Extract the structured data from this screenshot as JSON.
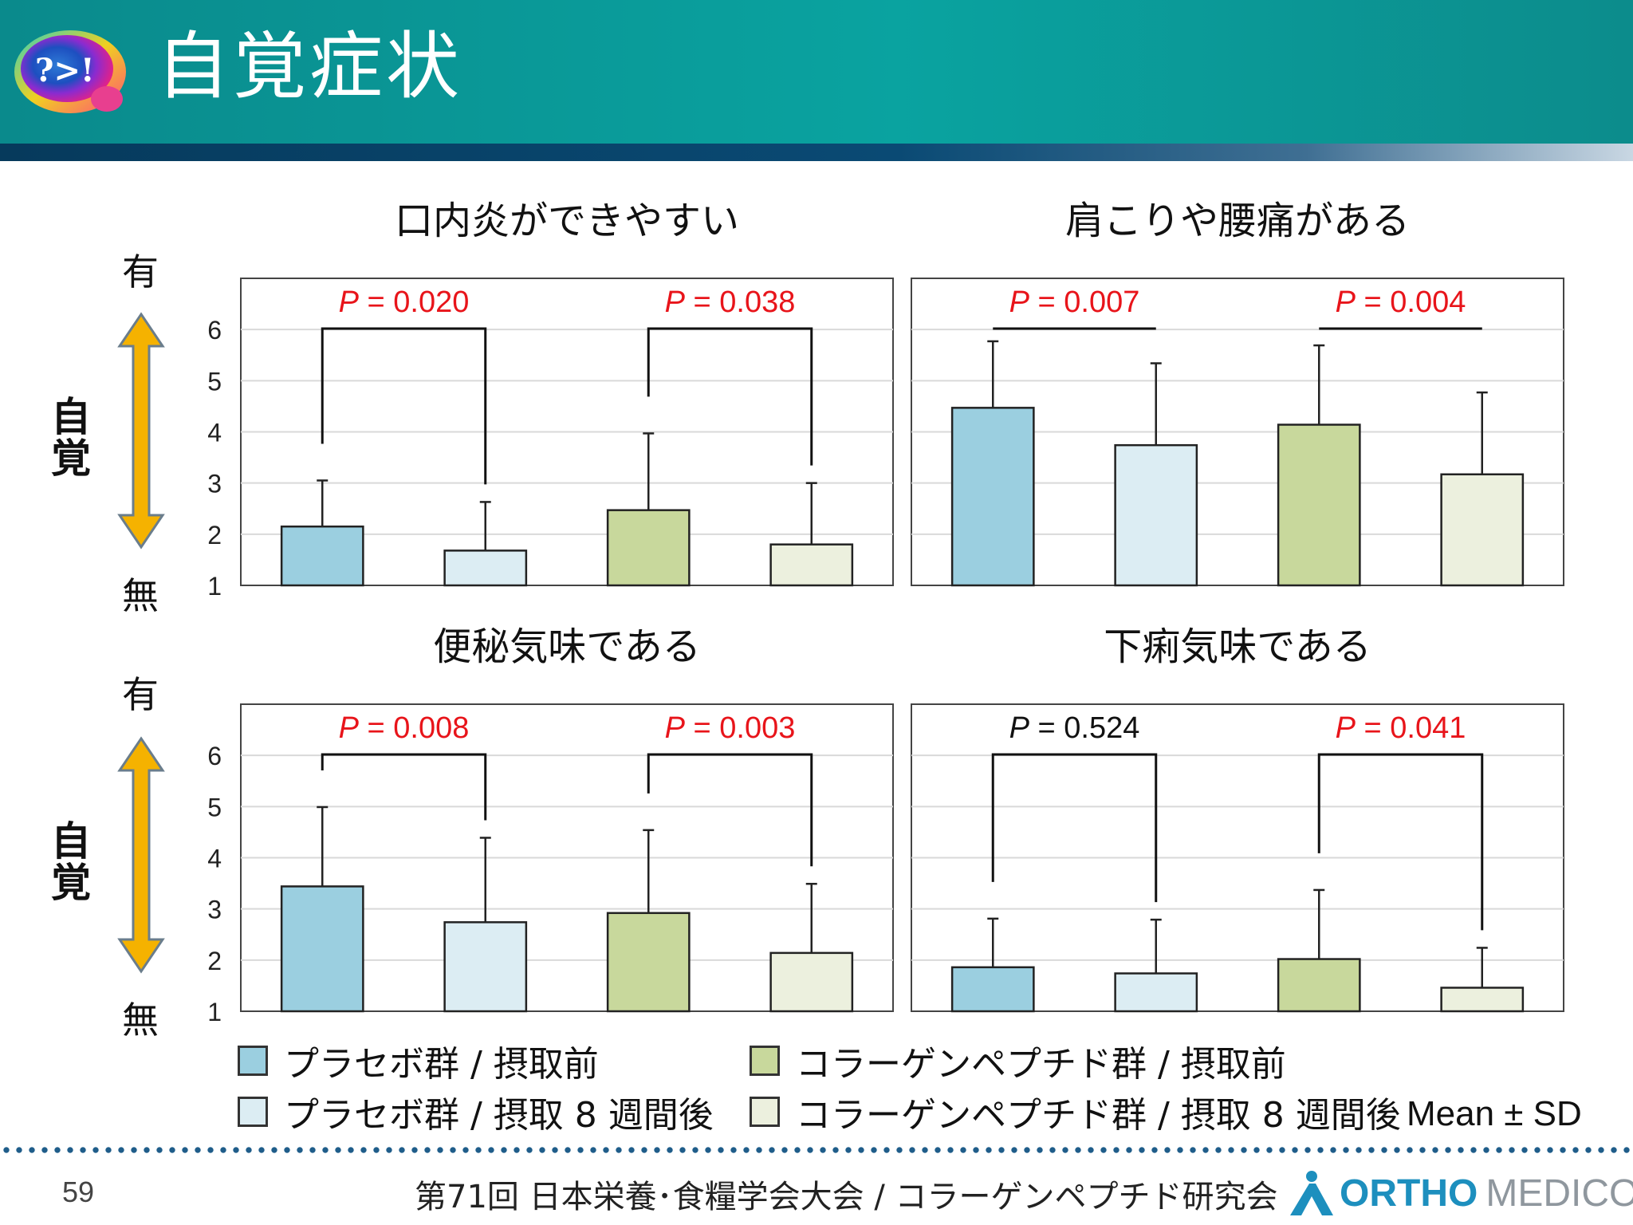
{
  "header": {
    "title": "自覚症状",
    "logo_text": "?>!"
  },
  "side_labels": {
    "top": {
      "have": "有",
      "awareness": "自覚",
      "none": "無"
    },
    "bottom": {
      "have": "有",
      "awareness": "自覚",
      "none": "無"
    }
  },
  "colors": {
    "placebo_before": "#9bcfe0",
    "placebo_after": "#dcedf3",
    "collagen_before": "#c8d89c",
    "collagen_after": "#ecf0de",
    "significant": "#e8141a",
    "not_significant": "#111111",
    "arrow": "#f5b200"
  },
  "chart_data": [
    {
      "type": "bar",
      "title": "口内炎ができやすい",
      "categories": [
        "プラセボ群 / 摂取前",
        "プラセボ群 / 摂取 8 週間後",
        "コラーゲンペプチド群 / 摂取前",
        "コラーゲンペプチド群 / 摂取 8 週間後"
      ],
      "values": [
        2.15,
        1.68,
        2.47,
        1.8
      ],
      "sd": [
        0.9,
        0.95,
        1.5,
        1.2
      ],
      "ylim": [
        1,
        7
      ],
      "yticks": [
        "1",
        "2",
        "3",
        "4",
        "5",
        "6"
      ],
      "grid": true,
      "comparisons": [
        {
          "label": "P = 0.020",
          "p": 0.02,
          "significant": true
        },
        {
          "label": "P = 0.038",
          "p": 0.038,
          "significant": true
        }
      ]
    },
    {
      "type": "bar",
      "title": "肩こりや腰痛がある",
      "categories": [
        "プラセボ群 / 摂取前",
        "プラセボ群 / 摂取 8 週間後",
        "コラーゲンペプチド群 / 摂取前",
        "コラーゲンペプチド群 / 摂取 8 週間後"
      ],
      "values": [
        4.47,
        3.74,
        4.14,
        3.17
      ],
      "sd": [
        1.3,
        1.6,
        1.55,
        1.6
      ],
      "ylim": [
        1,
        7
      ],
      "yticks": [],
      "grid": true,
      "comparisons": [
        {
          "label": "P = 0.007",
          "p": 0.007,
          "significant": true
        },
        {
          "label": "P = 0.004",
          "p": 0.004,
          "significant": true
        }
      ]
    },
    {
      "type": "bar",
      "title": "便秘気味である",
      "categories": [
        "プラセボ群 / 摂取前",
        "プラセボ群 / 摂取 8 週間後",
        "コラーゲンペプチド群 / 摂取前",
        "コラーゲンペプチド群 / 摂取 8 週間後"
      ],
      "values": [
        3.44,
        2.74,
        2.92,
        2.14
      ],
      "sd": [
        1.55,
        1.65,
        1.62,
        1.35
      ],
      "ylim": [
        1,
        7
      ],
      "yticks": [
        "1",
        "2",
        "3",
        "4",
        "5",
        "6"
      ],
      "grid": true,
      "comparisons": [
        {
          "label": "P = 0.008",
          "p": 0.008,
          "significant": true
        },
        {
          "label": "P = 0.003",
          "p": 0.003,
          "significant": true
        }
      ]
    },
    {
      "type": "bar",
      "title": "下痢気味である",
      "categories": [
        "プラセボ群 / 摂取前",
        "プラセボ群 / 摂取 8 週間後",
        "コラーゲンペプチド群 / 摂取前",
        "コラーゲンペプチド群 / 摂取 8 週間後"
      ],
      "values": [
        1.86,
        1.74,
        2.02,
        1.46
      ],
      "sd": [
        0.95,
        1.05,
        1.35,
        0.78
      ],
      "ylim": [
        1,
        7
      ],
      "yticks": [],
      "grid": true,
      "comparisons": [
        {
          "label": "P = 0.524",
          "p": 0.524,
          "significant": false
        },
        {
          "label": "P = 0.041",
          "p": 0.041,
          "significant": true
        }
      ]
    }
  ],
  "legend": [
    {
      "label": "プラセボ群 / 摂取前"
    },
    {
      "label": "プラセボ群 / 摂取 8 週間後"
    },
    {
      "label": "コラーゲンペプチド群 / 摂取前"
    },
    {
      "label": "コラーゲンペプチド群 / 摂取 8 週間後"
    }
  ],
  "mean_sd_note": "Mean ± SD",
  "footer": {
    "page_number": "59",
    "conference": "第71回 日本栄養･食糧学会大会 / コラーゲンペプチド研究会",
    "brand_ortho": "ORTHO",
    "brand_medico": "MEDICO"
  }
}
